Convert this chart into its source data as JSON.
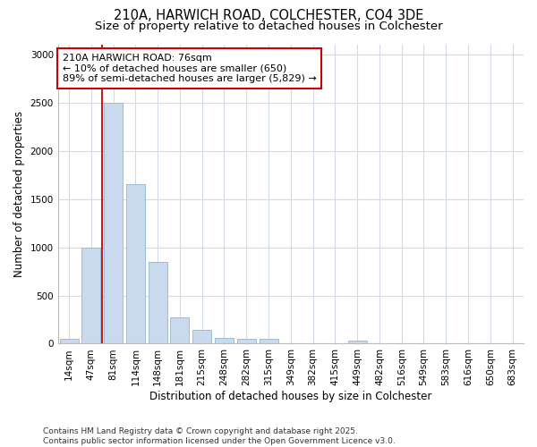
{
  "title_line1": "210A, HARWICH ROAD, COLCHESTER, CO4 3DE",
  "title_line2": "Size of property relative to detached houses in Colchester",
  "xlabel": "Distribution of detached houses by size in Colchester",
  "ylabel": "Number of detached properties",
  "footnote1": "Contains HM Land Registry data © Crown copyright and database right 2025.",
  "footnote2": "Contains public sector information licensed under the Open Government Licence v3.0.",
  "annotation_line1": "210A HARWICH ROAD: 76sqm",
  "annotation_line2": "← 10% of detached houses are smaller (650)",
  "annotation_line3": "89% of semi-detached houses are larger (5,829) →",
  "bar_labels": [
    "14sqm",
    "47sqm",
    "81sqm",
    "114sqm",
    "148sqm",
    "181sqm",
    "215sqm",
    "248sqm",
    "282sqm",
    "315sqm",
    "349sqm",
    "382sqm",
    "415sqm",
    "449sqm",
    "482sqm",
    "516sqm",
    "549sqm",
    "583sqm",
    "616sqm",
    "650sqm",
    "683sqm"
  ],
  "bar_values": [
    50,
    1000,
    2500,
    1650,
    850,
    270,
    140,
    60,
    50,
    50,
    0,
    0,
    0,
    30,
    0,
    0,
    0,
    0,
    0,
    0,
    0
  ],
  "bar_color": "#c9d9ee",
  "bar_edge_color": "#9bbcd8",
  "vline_color": "#cc0000",
  "vline_x_index": 1,
  "annotation_box_edge_color": "#cc0000",
  "ylim": [
    0,
    3100
  ],
  "yticks": [
    0,
    500,
    1000,
    1500,
    2000,
    2500,
    3000
  ],
  "background_color": "#ffffff",
  "grid_color": "#d0daea",
  "title_fontsize": 10.5,
  "subtitle_fontsize": 9.5,
  "axis_label_fontsize": 8.5,
  "tick_fontsize": 7.5,
  "annotation_fontsize": 8,
  "footnote_fontsize": 6.5
}
